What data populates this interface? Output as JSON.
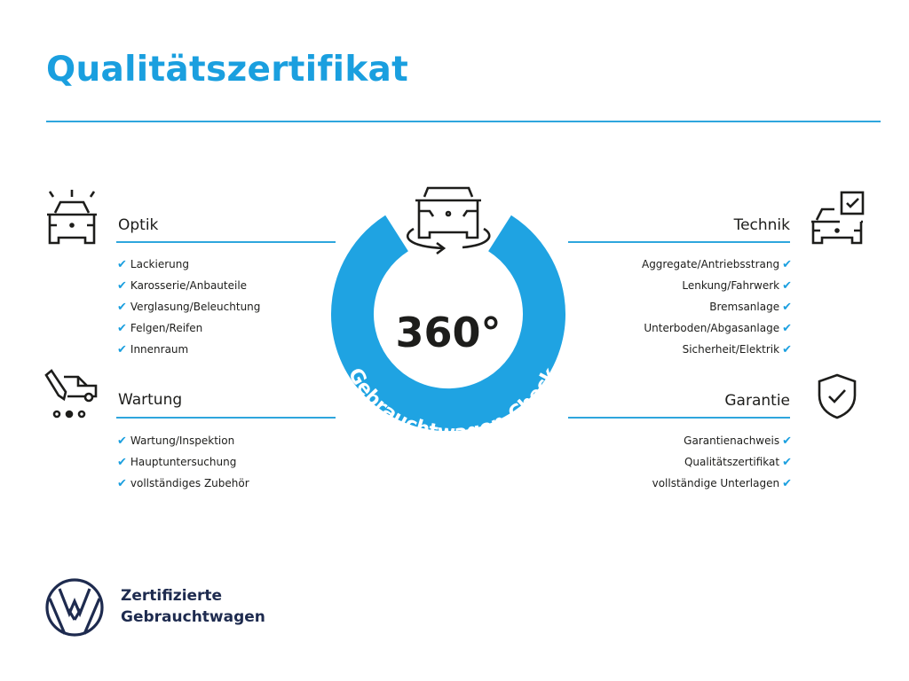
{
  "title": "Qualitätszertifikat",
  "center": {
    "number": "360°",
    "arc_text": "Gebrauchtwagen-Check",
    "ring_color": "#1fa3e2",
    "icon": "car-rotate-icon"
  },
  "accent_color": "#1a9fdf",
  "check_glyph": "✔",
  "sections": {
    "optik": {
      "heading": "Optik",
      "icon": "car-lights-icon",
      "items": [
        "Lackierung",
        "Karosserie/Anbauteile",
        "Verglasung/Beleuchtung",
        "Felgen/Reifen",
        "Innenraum"
      ]
    },
    "wartung": {
      "heading": "Wartung",
      "icon": "service-van-icon",
      "items": [
        "Wartung/Inspektion",
        "Hauptuntersuchung",
        "vollständiges Zubehör"
      ]
    },
    "technik": {
      "heading": "Technik",
      "icon": "car-checklist-icon",
      "items": [
        "Aggregate/Antriebsstrang",
        "Lenkung/Fahrwerk",
        "Bremsanlage",
        "Unterboden/Abgasanlage",
        "Sicherheit/Elektrik"
      ]
    },
    "garantie": {
      "heading": "Garantie",
      "icon": "shield-check-icon",
      "items": [
        "Garantienachweis",
        "Qualitätszertifikat",
        "vollständige Unterlagen"
      ]
    }
  },
  "brand": {
    "line1": "Zertifizierte",
    "line2": "Gebrauchtwagen",
    "logo": "vw-logo"
  }
}
